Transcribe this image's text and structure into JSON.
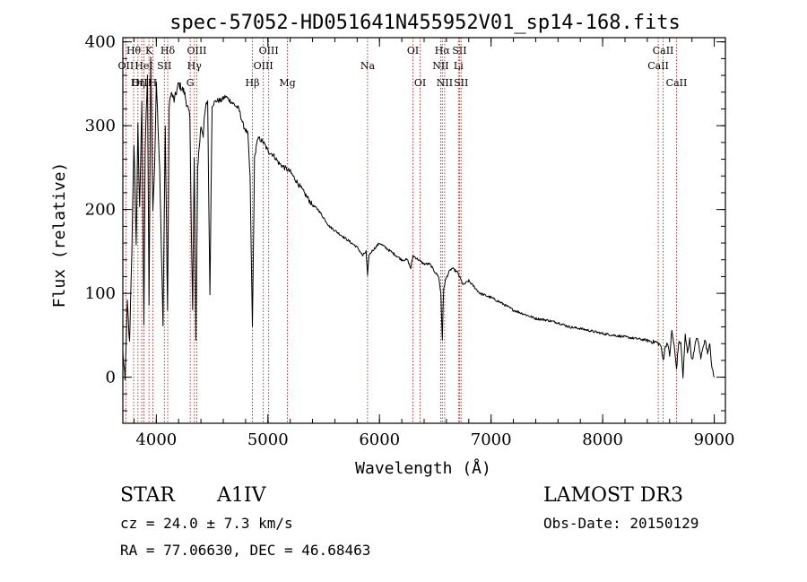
{
  "chart_data": {
    "type": "line",
    "title": "spec-57052-HD051641N455952V01_sp14-168.fits",
    "xlabel": "Wavelength (Å)",
    "ylabel": "Flux (relative)",
    "xlim": [
      3700,
      9100
    ],
    "ylim": [
      -55,
      405
    ],
    "x_ticks": [
      4000,
      5000,
      6000,
      7000,
      8000,
      9000
    ],
    "y_ticks": [
      0,
      100,
      200,
      300,
      400
    ],
    "x_tick_labels": [
      "4000",
      "5000",
      "6000",
      "7000",
      "8000",
      "9000"
    ],
    "y_tick_labels": [
      "0",
      "100",
      "200",
      "300",
      "400"
    ],
    "line_color": "#000000",
    "marker_color": "#b22222",
    "series": [
      {
        "name": "flux",
        "x": [
          3700,
          3720,
          3740,
          3760,
          3780,
          3800,
          3820,
          3835,
          3850,
          3870,
          3889,
          3900,
          3920,
          3935,
          3950,
          3969,
          3985,
          4000,
          4030,
          4060,
          4080,
          4101,
          4115,
          4130,
          4160,
          4200,
          4250,
          4300,
          4325,
          4340,
          4355,
          4370,
          4400,
          4420,
          4440,
          4460,
          4480,
          4500,
          4540,
          4580,
          4620,
          4660,
          4700,
          4740,
          4780,
          4820,
          4840,
          4861,
          4880,
          4900,
          4920,
          4960,
          5000,
          5050,
          5100,
          5150,
          5200,
          5250,
          5300,
          5350,
          5400,
          5450,
          5500,
          5550,
          5600,
          5650,
          5700,
          5750,
          5800,
          5850,
          5880,
          5893,
          5905,
          5930,
          6000,
          6100,
          6200,
          6250,
          6280,
          6300,
          6350,
          6400,
          6450,
          6500,
          6530,
          6550,
          6563,
          6575,
          6590,
          6620,
          6650,
          6700,
          6750,
          6800,
          6900,
          7000,
          7100,
          7200,
          7300,
          7400,
          7500,
          7600,
          7700,
          7800,
          7900,
          8000,
          8100,
          8200,
          8300,
          8400,
          8450,
          8480,
          8500,
          8520,
          8542,
          8560,
          8580,
          8600,
          8620,
          8640,
          8662,
          8680,
          8700,
          8720,
          8740,
          8760,
          8780,
          8800,
          8820,
          8840,
          8860,
          8880,
          8900,
          8920,
          8940,
          8960,
          8980,
          9000
        ],
        "y": [
          30,
          -5,
          90,
          40,
          150,
          280,
          160,
          300,
          200,
          330,
          60,
          270,
          360,
          90,
          380,
          200,
          250,
          355,
          250,
          60,
          300,
          80,
          320,
          340,
          330,
          350,
          340,
          310,
          80,
          260,
          40,
          250,
          300,
          290,
          320,
          330,
          100,
          325,
          330,
          330,
          335,
          330,
          325,
          320,
          300,
          290,
          240,
          60,
          260,
          280,
          285,
          280,
          270,
          265,
          255,
          250,
          245,
          235,
          225,
          215,
          205,
          200,
          190,
          180,
          175,
          170,
          165,
          160,
          155,
          145,
          150,
          120,
          145,
          150,
          160,
          150,
          140,
          140,
          130,
          145,
          140,
          135,
          135,
          125,
          120,
          100,
          45,
          105,
          115,
          125,
          130,
          125,
          110,
          115,
          100,
          95,
          88,
          80,
          75,
          70,
          68,
          65,
          60,
          58,
          55,
          52,
          50,
          48,
          46,
          44,
          42,
          42,
          40,
          38,
          20,
          35,
          42,
          25,
          55,
          38,
          10,
          40,
          42,
          0,
          50,
          30,
          45,
          20,
          30,
          48,
          40,
          22,
          38,
          44,
          28,
          42,
          10,
          0
        ]
      }
    ],
    "line_markers": [
      {
        "label": "Hθ",
        "x": 3797,
        "row": 1
      },
      {
        "label": "OII",
        "x": 3727,
        "row": 2
      },
      {
        "label": "OIII",
        "x": 3869,
        "row": 3
      },
      {
        "label": "K",
        "x": 3934,
        "row": 1
      },
      {
        "label": "HeI",
        "x": 3889,
        "row": 2
      },
      {
        "label": "Hη",
        "x": 3835,
        "row": 3
      },
      {
        "label": "Hδ",
        "x": 4102,
        "row": 1
      },
      {
        "label": "SII",
        "x": 4072,
        "row": 2
      },
      {
        "label": "H",
        "x": 3969,
        "row": 3
      },
      {
        "label": "OIII",
        "x": 4363,
        "row": 1
      },
      {
        "label": "Hγ",
        "x": 4341,
        "row": 2
      },
      {
        "label": "G",
        "x": 4304,
        "row": 3
      },
      {
        "label": "OIII",
        "x": 5007,
        "row": 1
      },
      {
        "label": "OIII",
        "x": 4959,
        "row": 2
      },
      {
        "label": "Hβ",
        "x": 4861,
        "row": 3
      },
      {
        "label": "Mg",
        "x": 5175,
        "row": 3
      },
      {
        "label": "Na",
        "x": 5893,
        "row": 2
      },
      {
        "label": "OI",
        "x": 6300,
        "row": 1
      },
      {
        "label": "OI",
        "x": 6364,
        "row": 3
      },
      {
        "label": "Hα",
        "x": 6563,
        "row": 1
      },
      {
        "label": "SII",
        "x": 6717,
        "row": 1
      },
      {
        "label": "NII",
        "x": 6548,
        "row": 2
      },
      {
        "label": "Li",
        "x": 6708,
        "row": 2
      },
      {
        "label": "NII",
        "x": 6584,
        "row": 3
      },
      {
        "label": "SII",
        "x": 6731,
        "row": 3
      },
      {
        "label": "CaII",
        "x": 8542,
        "row": 1
      },
      {
        "label": "CaII",
        "x": 8498,
        "row": 2
      },
      {
        "label": "CaII",
        "x": 8662,
        "row": 3
      }
    ]
  },
  "info": {
    "object_class": "STAR",
    "subclass": "A1IV",
    "survey": "LAMOST DR3",
    "cz": "cz = 24.0 ± 7.3 km/s",
    "obs_date": "Obs-Date: 20150129",
    "coords": "RA =  77.06630, DEC =  46.68463"
  }
}
